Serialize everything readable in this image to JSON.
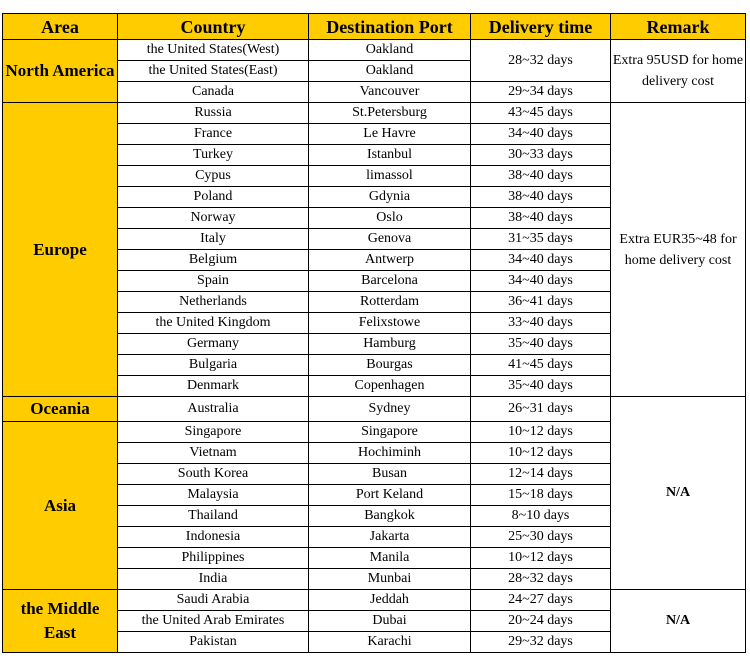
{
  "header": {
    "area": "Area",
    "country": "Country",
    "port": "Destination Port",
    "delivery": "Delivery time",
    "remark": "Remark"
  },
  "colors": {
    "header_bg": "#FFCC00"
  },
  "groups": [
    {
      "area": "North America",
      "remark": "Extra 95USD for home delivery cost",
      "rows": [
        {
          "country": "the United States(West)",
          "port": "Oakland",
          "delivery": "28~32 days"
        },
        {
          "country": "the United States(East)",
          "port": "Oakland",
          "delivery": "28~32 days"
        },
        {
          "country": "Canada",
          "port": "Vancouver",
          "delivery": "29~34 days"
        }
      ]
    },
    {
      "area": "Europe",
      "remark": "Extra EUR35~48 for home delivery cost",
      "rows": [
        {
          "country": "Russia",
          "port": "St.Petersburg",
          "delivery": "43~45 days"
        },
        {
          "country": "France",
          "port": "Le Havre",
          "delivery": "34~40 days"
        },
        {
          "country": "Turkey",
          "port": "Istanbul",
          "delivery": "30~33 days"
        },
        {
          "country": "Cypus",
          "port": "limassol",
          "delivery": "38~40 days"
        },
        {
          "country": "Poland",
          "port": "Gdynia",
          "delivery": "38~40 days"
        },
        {
          "country": "Norway",
          "port": "Oslo",
          "delivery": "38~40 days"
        },
        {
          "country": "Italy",
          "port": "Genova",
          "delivery": "31~35 days"
        },
        {
          "country": "Belgium",
          "port": "Antwerp",
          "delivery": "34~40 days"
        },
        {
          "country": "Spain",
          "port": "Barcelona",
          "delivery": "34~40 days"
        },
        {
          "country": "Netherlands",
          "port": "Rotterdam",
          "delivery": "36~41 days"
        },
        {
          "country": "the United Kingdom",
          "port": "Felixstowe",
          "delivery": "33~40 days"
        },
        {
          "country": "Germany",
          "port": "Hamburg",
          "delivery": "35~40 days"
        },
        {
          "country": "Bulgaria",
          "port": "Bourgas",
          "delivery": "41~45 days"
        },
        {
          "country": "Denmark",
          "port": "Copenhagen",
          "delivery": "35~40 days"
        }
      ]
    },
    {
      "area": "Oceania",
      "rows": [
        {
          "country": "Australia",
          "port": "Sydney",
          "delivery": "26~31 days"
        }
      ]
    },
    {
      "area": "Asia",
      "remark": "N/A",
      "rows": [
        {
          "country": "Singapore",
          "port": "Singapore",
          "delivery": "10~12 days"
        },
        {
          "country": "Vietnam",
          "port": "Hochiminh",
          "delivery": "10~12 days"
        },
        {
          "country": "South Korea",
          "port": "Busan",
          "delivery": "12~14 days"
        },
        {
          "country": "Malaysia",
          "port": "Port Keland",
          "delivery": "15~18 days"
        },
        {
          "country": "Thailand",
          "port": "Bangkok",
          "delivery": "8~10 days"
        },
        {
          "country": "Indonesia",
          "port": "Jakarta",
          "delivery": "25~30 days"
        },
        {
          "country": "Philippines",
          "port": "Manila",
          "delivery": "10~12 days"
        },
        {
          "country": "India",
          "port": "Munbai",
          "delivery": "28~32 days"
        }
      ]
    },
    {
      "area": "the Middle East",
      "remark": "N/A",
      "rows": [
        {
          "country": "Saudi Arabia",
          "port": "Jeddah",
          "delivery": "24~27 days"
        },
        {
          "country": "the United Arab Emirates",
          "port": "Dubai",
          "delivery": "20~24 days"
        },
        {
          "country": "Pakistan",
          "port": "Karachi",
          "delivery": "29~32 days"
        }
      ]
    }
  ]
}
